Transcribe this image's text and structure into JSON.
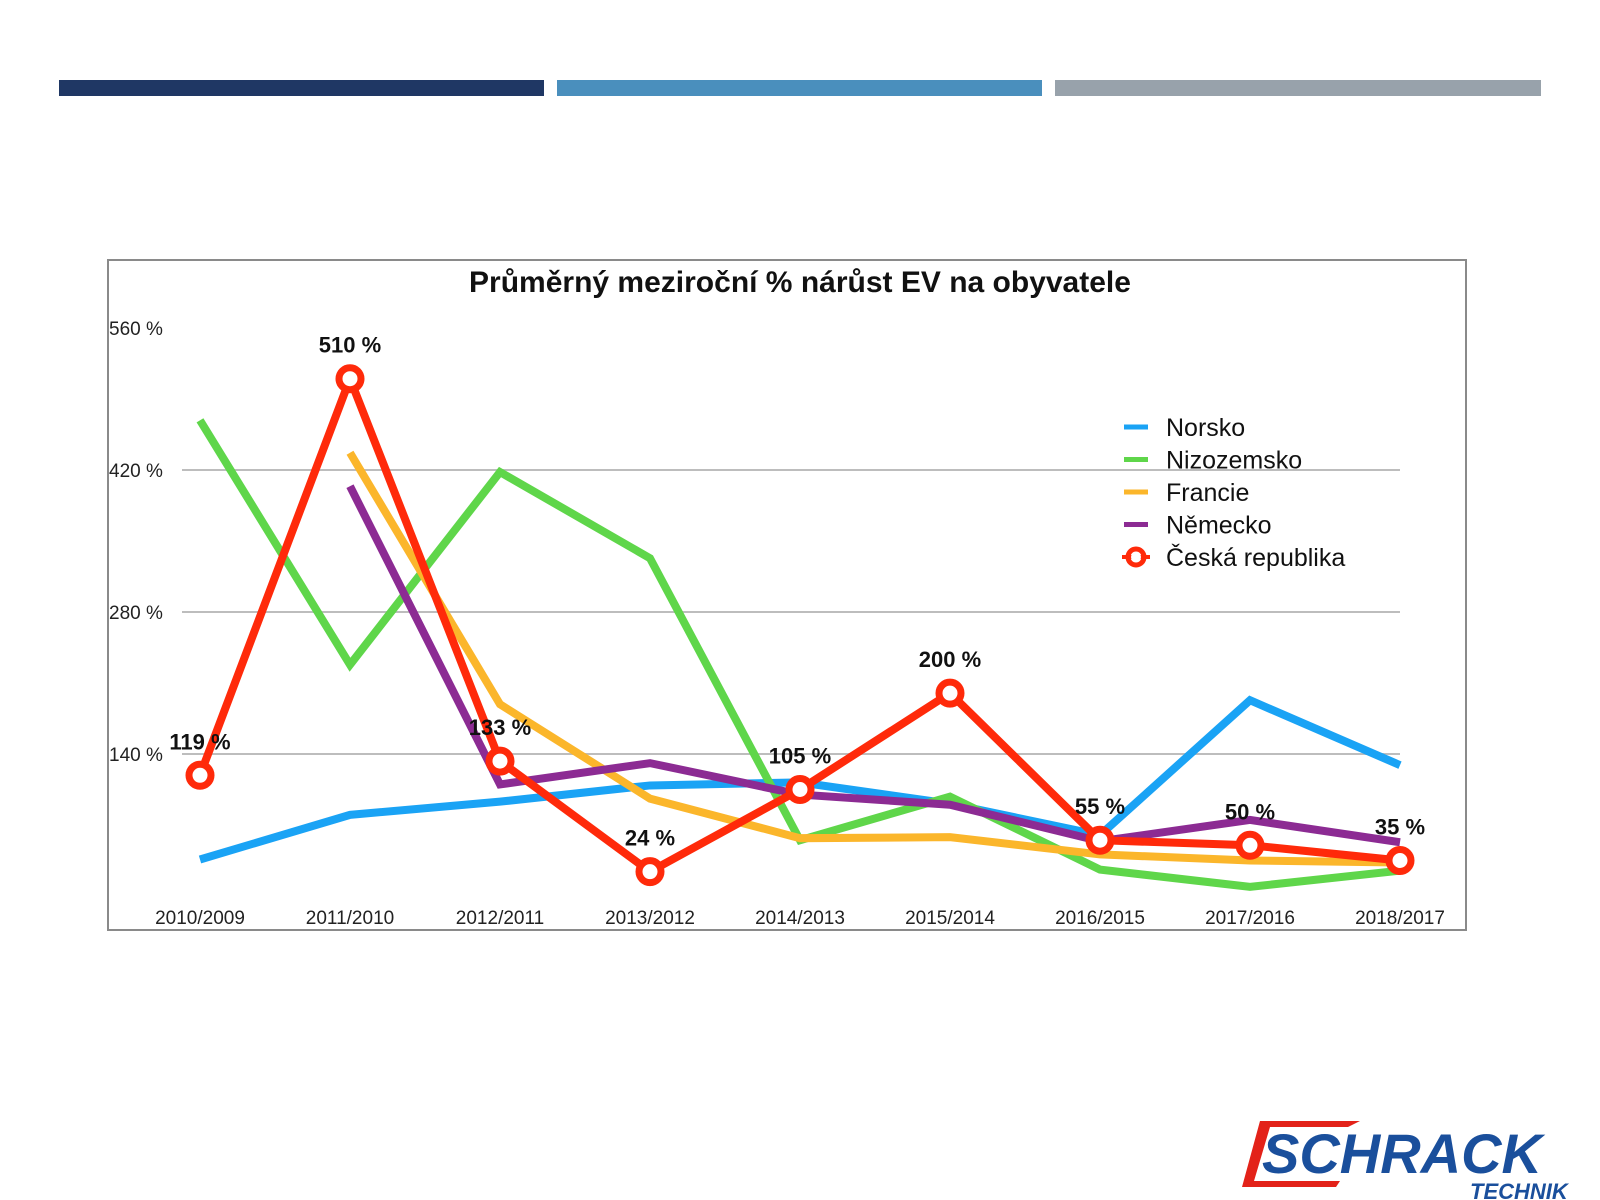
{
  "header_bars": [
    {
      "name": "dark-blue",
      "color": "#1f3764"
    },
    {
      "name": "light-blue",
      "color": "#4a8fbd"
    },
    {
      "name": "gray",
      "color": "#98a2ab"
    }
  ],
  "logo": {
    "brand": "SCHRACK",
    "sub": "TECHNIK",
    "brand_color": "#1a4f9c",
    "frame_color": "#e32219"
  },
  "chart_data": {
    "type": "line",
    "title": "Průměrný meziroční % nárůst EV na obyvatele",
    "xlabel": "",
    "ylabel": "",
    "ylim": [
      0,
      560
    ],
    "yticks": [
      140,
      280,
      420,
      560
    ],
    "ytick_labels": [
      "140 %",
      "280 %",
      "420 %",
      "560 %"
    ],
    "grid": true,
    "legend_position": "top-right",
    "categories": [
      "2010/2009",
      "2011/2010",
      "2012/2011",
      "2013/2012",
      "2014/2013",
      "2015/2014",
      "2016/2015",
      "2017/2016",
      "2018/2017"
    ],
    "series": [
      {
        "name": "Norsko",
        "color": "#1aa3f5",
        "marker": false,
        "values": [
          36,
          80,
          93,
          109,
          112,
          91,
          60,
          193,
          129
        ]
      },
      {
        "name": "Nizozemsko",
        "color": "#5fd64a",
        "marker": false,
        "values": [
          469,
          228,
          418,
          333,
          55,
          98,
          26,
          9,
          25
        ]
      },
      {
        "name": "Francie",
        "color": "#fbb62b",
        "marker": false,
        "values": [
          null,
          437,
          189,
          96,
          57,
          58,
          41,
          35,
          33
        ]
      },
      {
        "name": "Německo",
        "color": "#8c2b93",
        "marker": false,
        "values": [
          null,
          404,
          110,
          131,
          100,
          90,
          54,
          75,
          53
        ]
      },
      {
        "name": "Česká republika",
        "color": "#ff2a0a",
        "marker": true,
        "values": [
          119,
          510,
          133,
          24,
          105,
          200,
          55,
          50,
          35
        ],
        "labels": [
          "119 %",
          "510 %",
          "133 %",
          "24 %",
          "105 %",
          "200 %",
          "55 %",
          "50 %",
          "35 %"
        ]
      }
    ]
  }
}
